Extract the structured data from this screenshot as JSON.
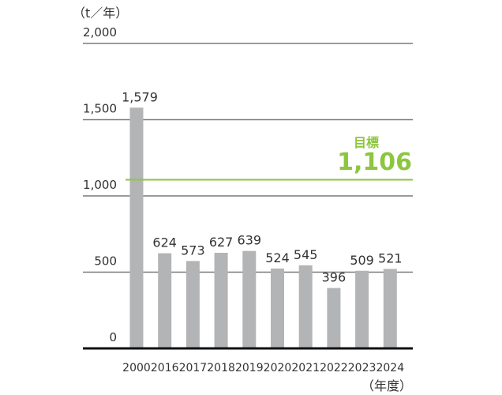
{
  "chart_data": {
    "type": "bar",
    "title": "",
    "ylabel": "（t／年）",
    "xlabel": "（年度）",
    "ylim": [
      0,
      2000
    ],
    "yticks": [
      0,
      500,
      1000,
      1500,
      2000
    ],
    "ytick_labels": [
      "0",
      "500",
      "1,000",
      "1,500",
      "2,000"
    ],
    "categories": [
      "2000",
      "2016",
      "2017",
      "2018",
      "2019",
      "2020",
      "2021",
      "2022",
      "2023",
      "2024"
    ],
    "values": [
      1579,
      624,
      573,
      627,
      639,
      524,
      545,
      396,
      509,
      521
    ],
    "value_labels": [
      "1,579",
      "624",
      "573",
      "627",
      "639",
      "524",
      "545",
      "396",
      "509",
      "521"
    ],
    "grid": true,
    "target": {
      "label": "目標",
      "value": 1106,
      "value_label": "1,106"
    },
    "colors": {
      "bar": "#b3b4b6",
      "grid": "#7a7a7a",
      "axis": "#111111",
      "target": "#8dc63f"
    }
  }
}
